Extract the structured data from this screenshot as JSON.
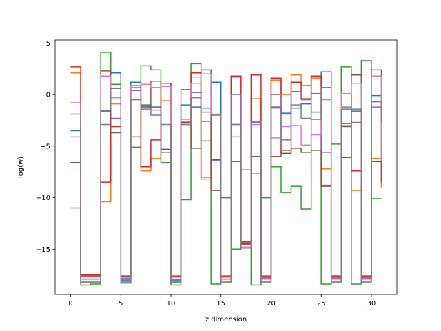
{
  "chart_data": {
    "type": "line",
    "step": "post",
    "title": "",
    "xlabel": "z dimension",
    "ylabel": "log(w)",
    "xlim": [
      -1.55,
      32.55
    ],
    "ylim": [
      -19.4,
      5.3
    ],
    "x_ticks": [
      0,
      5,
      10,
      15,
      20,
      25,
      30
    ],
    "x_tick_labels": [
      "0",
      "5",
      "10",
      "15",
      "20",
      "25",
      "30"
    ],
    "y_ticks": [
      5,
      0,
      -5,
      -10,
      -15
    ],
    "y_tick_labels": [
      "5",
      "0",
      "−5",
      "−10",
      "−15"
    ],
    "grid": false,
    "legend": false,
    "x": [
      0,
      1,
      2,
      3,
      4,
      5,
      6,
      7,
      8,
      9,
      10,
      11,
      12,
      13,
      14,
      15,
      16,
      17,
      18,
      19,
      20,
      21,
      22,
      23,
      24,
      25,
      26,
      27,
      28,
      29,
      30,
      31
    ],
    "series": [
      {
        "color": "#1f77b4",
        "values": [
          -3.5,
          -17.9,
          -17.9,
          -1.6,
          2.1,
          -18.0,
          1.2,
          -1.0,
          -1.2,
          -5.3,
          -18.0,
          -1.0,
          -1.2,
          -1.3,
          1.2,
          -17.9,
          -2.9,
          -14.3,
          -7.7,
          -17.9,
          -1.2,
          -1.8,
          -1.3,
          -0.9,
          -1.7,
          2.2,
          -17.9,
          -6.1,
          -1.6,
          -17.9,
          -0.1,
          -5.2
        ]
      },
      {
        "color": "#ff7f0e",
        "values": [
          2.1,
          -17.7,
          -17.7,
          -10.4,
          -0.9,
          -17.9,
          0.7,
          -7.4,
          -6.2,
          -0.6,
          -18.2,
          -2.6,
          1.7,
          -8.2,
          -2.0,
          -17.9,
          1.7,
          -14.4,
          -0.4,
          -17.9,
          1.4,
          0.0,
          1.9,
          0.9,
          1.6,
          -7.2,
          -17.6,
          -3.0,
          -9.3,
          -17.6,
          -6.2,
          -9.0
        ]
      },
      {
        "color": "#2ca02c",
        "values": [
          -11.0,
          -18.5,
          -18.4,
          4.1,
          1.0,
          -18.3,
          -5.1,
          2.8,
          2.4,
          -6.6,
          -18.5,
          -10.2,
          3.0,
          -4.5,
          -18.4,
          -10.0,
          -15.0,
          -7.3,
          -18.5,
          -10.0,
          -7.0,
          -9.5,
          -8.9,
          -11.1,
          1.8,
          -18.4,
          -4.8,
          2.7,
          -18.4,
          3.3,
          -10.1,
          -10.1
        ]
      },
      {
        "color": "#d62728",
        "values": [
          2.7,
          -17.5,
          -17.5,
          -8.5,
          -3.1,
          -17.6,
          0.9,
          -7.0,
          -4.4,
          1.1,
          -17.6,
          -2.7,
          2.1,
          -8.0,
          -6.3,
          -17.6,
          1.8,
          -14.5,
          1.9,
          -17.6,
          1.6,
          -5.7,
          1.2,
          -0.4,
          1.8,
          -8.8,
          -17.6,
          -2.8,
          -7.4,
          -17.6,
          -6.5,
          -8.5
        ]
      },
      {
        "color": "#9467bd",
        "values": [
          -0.8,
          -17.9,
          -17.9,
          -2.9,
          -2.3,
          -17.8,
          0.4,
          -1.1,
          -2.0,
          -5.6,
          -17.9,
          0.5,
          0.2,
          -1.7,
          -6.4,
          -17.9,
          0.0,
          -14.6,
          -2.7,
          -17.8,
          0.0,
          -1.9,
          0.3,
          -0.5,
          0.1,
          -5.6,
          -17.8,
          -1.2,
          -2.7,
          -17.8,
          -1.2,
          -6.0
        ]
      },
      {
        "color": "#8c564b",
        "values": [
          -6.6,
          -17.6,
          -17.6,
          2.3,
          -3.7,
          -17.6,
          -4.1,
          -1.2,
          1.3,
          1.1,
          -17.7,
          -2.9,
          -5.2,
          2.4,
          -9.3,
          -17.7,
          -6.5,
          -14.3,
          -6.0,
          -17.7,
          -6.0,
          -5.4,
          -5.2,
          -5.6,
          -5.4,
          -8.9,
          -17.7,
          -3.1,
          1.9,
          -17.7,
          2.4,
          -8.4
        ]
      },
      {
        "color": "#e377c2",
        "values": [
          -4.1,
          -18.1,
          -18.1,
          1.8,
          -0.3,
          -18.1,
          0.9,
          1.0,
          0.7,
          0.8,
          -18.1,
          -2.4,
          1.1,
          2.0,
          -1.9,
          -18.1,
          -4.1,
          -14.8,
          -2.9,
          -18.1,
          -4.2,
          -3.1,
          -3.0,
          -4.9,
          -3.9,
          -0.5,
          -18.1,
          0.1,
          1.1,
          -18.1,
          1.8,
          -6.4
        ]
      },
      {
        "color": "#7f7f7f",
        "values": [
          -1.9,
          -18.2,
          -18.2,
          -1.5,
          0.6,
          -18.2,
          -0.5,
          -1.4,
          -1.5,
          -2.9,
          -18.2,
          -2.9,
          -0.3,
          -2.6,
          -2.0,
          -18.2,
          -2.9,
          -14.9,
          -2.6,
          -18.2,
          -1.3,
          -4.4,
          -1.0,
          -2.3,
          -2.4,
          0.7,
          -18.2,
          -1.4,
          -1.4,
          -18.2,
          -0.7,
          -2.7
        ]
      }
    ]
  }
}
